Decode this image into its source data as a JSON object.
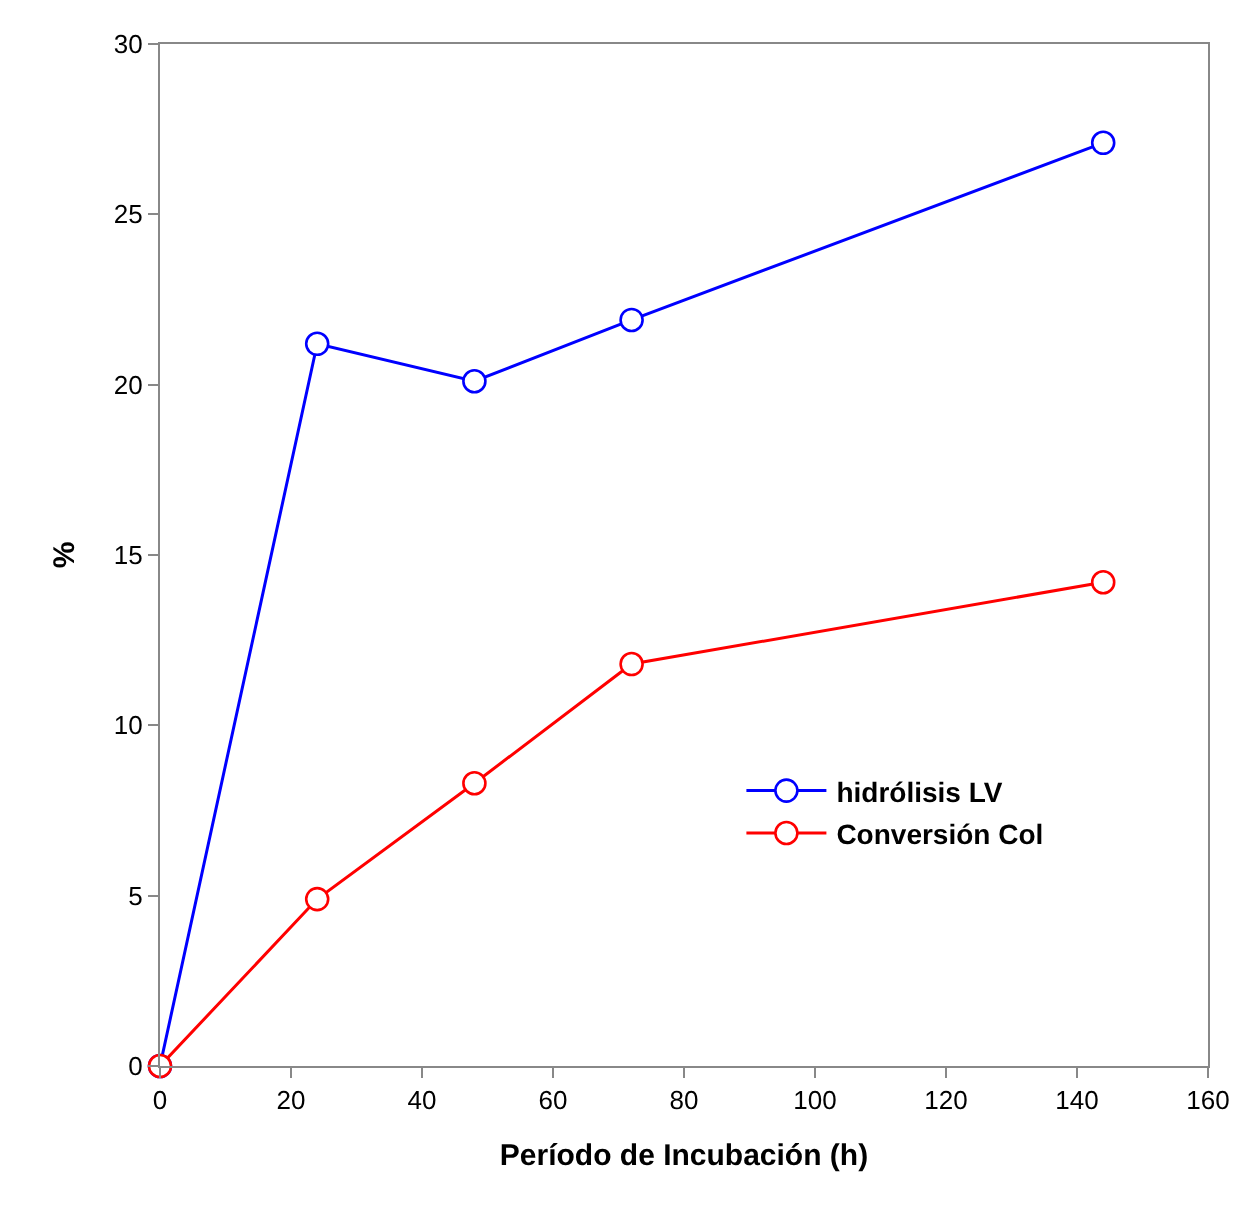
{
  "chart_data": {
    "type": "line",
    "xlabel": "Período de Incubación (h)",
    "ylabel": "%",
    "x": [
      0,
      24,
      48,
      72,
      144
    ],
    "series": [
      {
        "name": "hidrólisis LV",
        "color": "#0000ff",
        "values": [
          0,
          21.2,
          20.1,
          21.9,
          27.1
        ]
      },
      {
        "name": "Conversión Col",
        "color": "#ff0000",
        "values": [
          0,
          4.9,
          8.3,
          11.8,
          14.2
        ]
      }
    ],
    "xlim": [
      0,
      160
    ],
    "xticks": [
      0,
      20,
      40,
      60,
      80,
      100,
      120,
      140,
      160
    ],
    "ylim": [
      0,
      30
    ],
    "yticks": [
      0,
      5,
      10,
      15,
      20,
      25,
      30
    ],
    "legend": "bottom right",
    "marker": "circle",
    "line_style": "solid"
  }
}
